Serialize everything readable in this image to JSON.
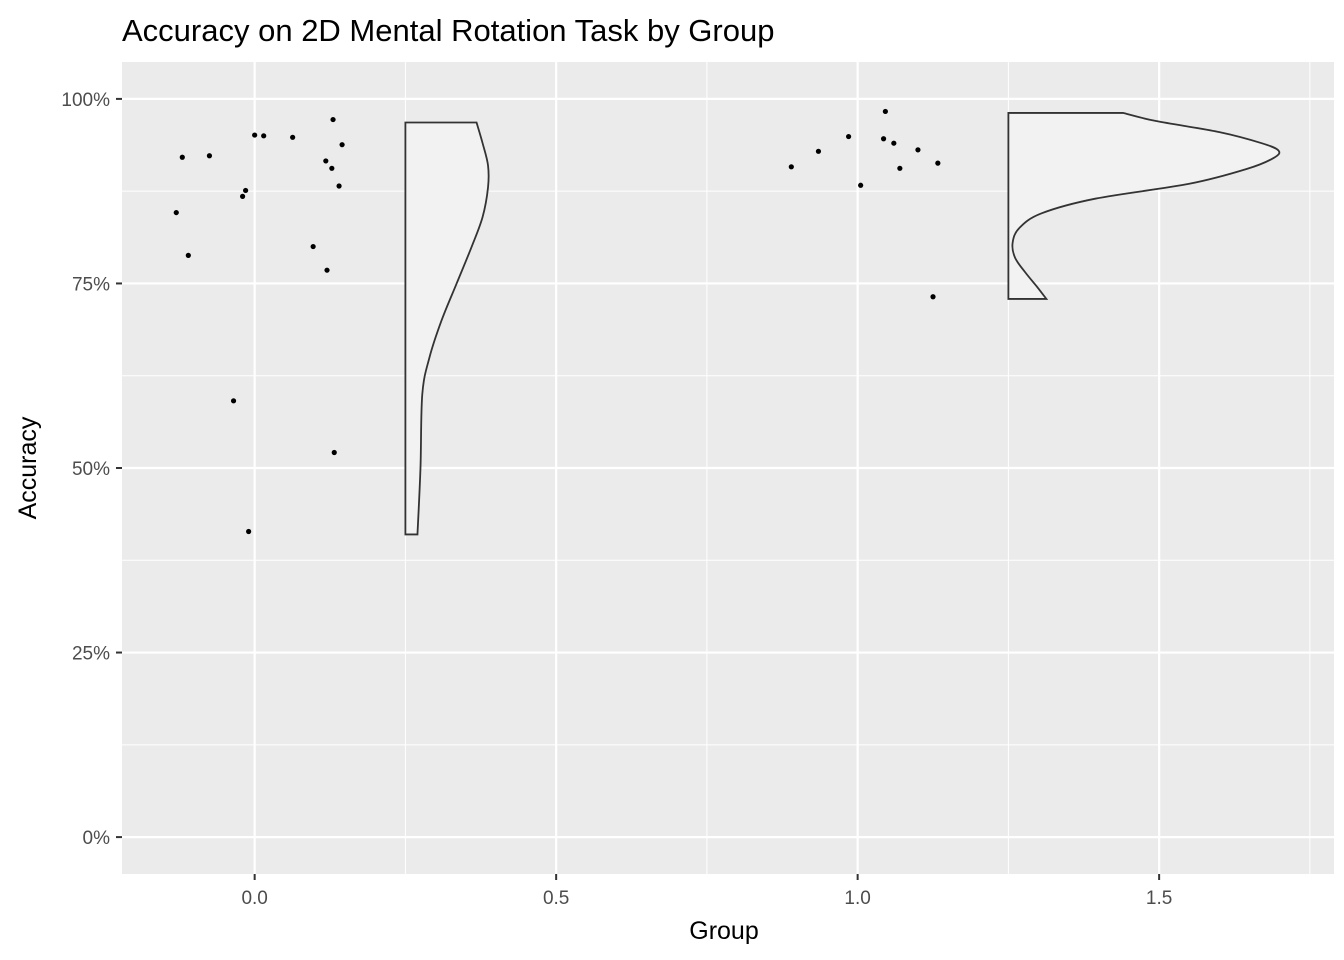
{
  "chart_data": {
    "type": "scatter",
    "title": "Accuracy on 2D Mental Rotation Task by Group",
    "xlabel": "Group",
    "ylabel": "Accuracy",
    "xlim": [
      -0.22,
      1.79
    ],
    "ylim": [
      -5,
      105
    ],
    "x_ticks": [
      0.0,
      0.5,
      1.0,
      1.5
    ],
    "x_tick_labels": [
      "0.0",
      "0.5",
      "1.0",
      "1.5"
    ],
    "y_ticks": [
      0,
      25,
      50,
      75,
      100
    ],
    "y_tick_labels": [
      "0%",
      "25%",
      "50%",
      "75%",
      "100%"
    ],
    "grid": true,
    "panel_color": "#ebebeb",
    "grid_color": "#ffffff",
    "point_color": "#000000",
    "violin_fill": "#f2f2f2",
    "violin_stroke": "#333333",
    "series": [
      {
        "group": 0,
        "points": [
          {
            "x": -0.13,
            "y": 84.6
          },
          {
            "x": -0.12,
            "y": 92.1
          },
          {
            "x": -0.11,
            "y": 78.8
          },
          {
            "x": -0.075,
            "y": 92.3
          },
          {
            "x": -0.035,
            "y": 59.1
          },
          {
            "x": -0.02,
            "y": 86.8
          },
          {
            "x": -0.015,
            "y": 87.6
          },
          {
            "x": -0.01,
            "y": 41.4
          },
          {
            "x": 0.0,
            "y": 95.1
          },
          {
            "x": 0.015,
            "y": 95.0
          },
          {
            "x": 0.063,
            "y": 94.8
          },
          {
            "x": 0.097,
            "y": 80.0
          },
          {
            "x": 0.118,
            "y": 91.6
          },
          {
            "x": 0.12,
            "y": 76.8
          },
          {
            "x": 0.128,
            "y": 90.6
          },
          {
            "x": 0.13,
            "y": 97.2
          },
          {
            "x": 0.132,
            "y": 52.1
          },
          {
            "x": 0.14,
            "y": 88.2
          },
          {
            "x": 0.145,
            "y": 93.8
          }
        ],
        "density": {
          "x_start": 0.25,
          "y_min": 41.0,
          "y_max": 96.8,
          "profile": [
            {
              "y": 41.0,
              "w": 0.02
            },
            {
              "y": 50.0,
              "w": 0.025
            },
            {
              "y": 60.0,
              "w": 0.028
            },
            {
              "y": 65.0,
              "w": 0.04
            },
            {
              "y": 70.0,
              "w": 0.06
            },
            {
              "y": 75.0,
              "w": 0.085
            },
            {
              "y": 80.0,
              "w": 0.11
            },
            {
              "y": 84.0,
              "w": 0.128
            },
            {
              "y": 88.0,
              "w": 0.137
            },
            {
              "y": 91.0,
              "w": 0.137
            },
            {
              "y": 94.0,
              "w": 0.128
            },
            {
              "y": 96.8,
              "w": 0.118
            }
          ]
        }
      },
      {
        "group": 1,
        "points": [
          {
            "x": 0.89,
            "y": 90.8
          },
          {
            "x": 0.935,
            "y": 92.9
          },
          {
            "x": 0.985,
            "y": 94.9
          },
          {
            "x": 1.005,
            "y": 88.3
          },
          {
            "x": 1.043,
            "y": 94.6
          },
          {
            "x": 1.046,
            "y": 98.3
          },
          {
            "x": 1.06,
            "y": 94.0
          },
          {
            "x": 1.07,
            "y": 90.6
          },
          {
            "x": 1.1,
            "y": 93.1
          },
          {
            "x": 1.125,
            "y": 73.2
          },
          {
            "x": 1.133,
            "y": 91.3
          }
        ],
        "density": {
          "x_start": 1.25,
          "y_min": 72.9,
          "y_max": 98.1,
          "profile": [
            {
              "y": 72.9,
              "w": 0.063
            },
            {
              "y": 74.5,
              "w": 0.048
            },
            {
              "y": 76.5,
              "w": 0.028
            },
            {
              "y": 78.5,
              "w": 0.011
            },
            {
              "y": 80.5,
              "w": 0.007
            },
            {
              "y": 82.5,
              "w": 0.018
            },
            {
              "y": 84.5,
              "w": 0.055
            },
            {
              "y": 86.5,
              "w": 0.145
            },
            {
              "y": 88.5,
              "w": 0.3
            },
            {
              "y": 90.5,
              "w": 0.395
            },
            {
              "y": 92.0,
              "w": 0.44
            },
            {
              "y": 93.0,
              "w": 0.448
            },
            {
              "y": 94.0,
              "w": 0.42
            },
            {
              "y": 95.5,
              "w": 0.35
            },
            {
              "y": 97.0,
              "w": 0.245
            },
            {
              "y": 98.1,
              "w": 0.19
            }
          ]
        }
      }
    ]
  }
}
